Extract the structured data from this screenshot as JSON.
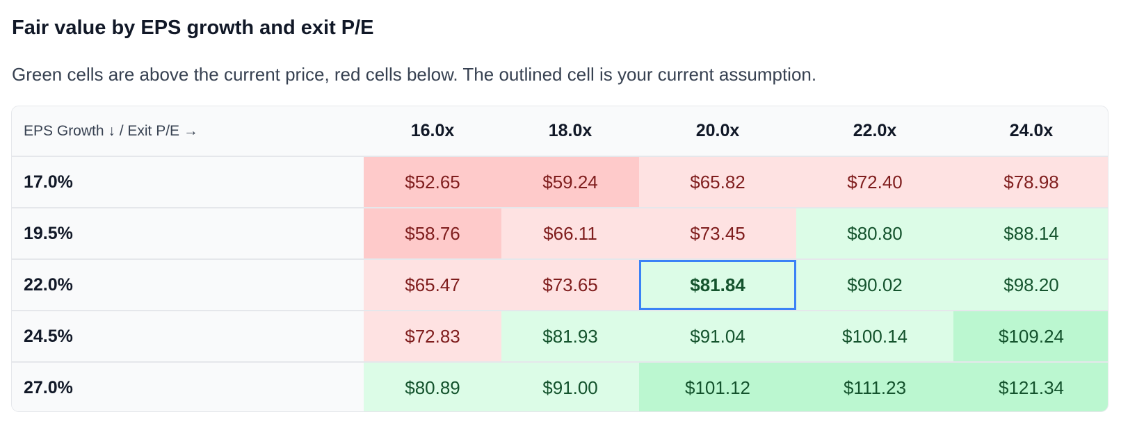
{
  "heading": {
    "title": "Fair value by EPS growth and exit P/E",
    "subtitle": "Green cells are above the current price, red cells below. The outlined cell is your current assumption."
  },
  "table": {
    "corner_label": "EPS Growth ↓ / Exit P/E →",
    "columns": [
      "16.0x",
      "18.0x",
      "20.0x",
      "22.0x",
      "24.0x"
    ],
    "rows": [
      {
        "label": "17.0%",
        "cells": [
          {
            "value": "$52.65",
            "tone": "red-strong"
          },
          {
            "value": "$59.24",
            "tone": "red-strong"
          },
          {
            "value": "$65.82",
            "tone": "red-light"
          },
          {
            "value": "$72.40",
            "tone": "red-light"
          },
          {
            "value": "$78.98",
            "tone": "red-light"
          }
        ]
      },
      {
        "label": "19.5%",
        "cells": [
          {
            "value": "$58.76",
            "tone": "red-strong"
          },
          {
            "value": "$66.11",
            "tone": "red-light"
          },
          {
            "value": "$73.45",
            "tone": "red-light"
          },
          {
            "value": "$80.80",
            "tone": "green-light"
          },
          {
            "value": "$88.14",
            "tone": "green-light"
          }
        ]
      },
      {
        "label": "22.0%",
        "cells": [
          {
            "value": "$65.47",
            "tone": "red-light"
          },
          {
            "value": "$73.65",
            "tone": "red-light"
          },
          {
            "value": "$81.84",
            "tone": "green-light",
            "current": true
          },
          {
            "value": "$90.02",
            "tone": "green-light"
          },
          {
            "value": "$98.20",
            "tone": "green-light"
          }
        ]
      },
      {
        "label": "24.5%",
        "cells": [
          {
            "value": "$72.83",
            "tone": "red-light"
          },
          {
            "value": "$81.93",
            "tone": "green-light"
          },
          {
            "value": "$91.04",
            "tone": "green-light"
          },
          {
            "value": "$100.14",
            "tone": "green-light"
          },
          {
            "value": "$109.24",
            "tone": "green-strong"
          }
        ]
      },
      {
        "label": "27.0%",
        "cells": [
          {
            "value": "$80.89",
            "tone": "green-light"
          },
          {
            "value": "$91.00",
            "tone": "green-light"
          },
          {
            "value": "$101.12",
            "tone": "green-strong"
          },
          {
            "value": "$111.23",
            "tone": "green-strong"
          },
          {
            "value": "$121.34",
            "tone": "green-strong"
          }
        ]
      }
    ]
  },
  "colors": {
    "red_strong": "#fecaca",
    "red_light": "#fee2e2",
    "green_light": "#dcfce7",
    "green_strong": "#bbf7d0",
    "current_outline": "#3b82f6"
  }
}
